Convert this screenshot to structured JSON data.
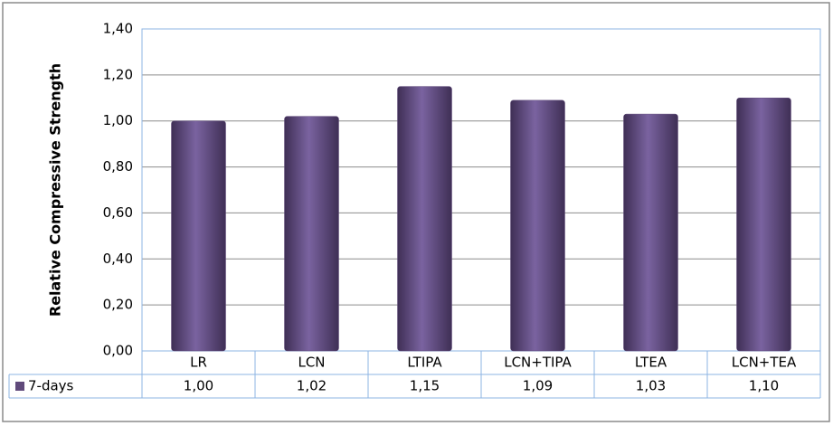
{
  "chart_data": {
    "type": "bar",
    "y_label": "Relative Compressive Strength",
    "categories": [
      "LR",
      "LCN",
      "LTIPA",
      "LCN+TIPA",
      "LTEA",
      "LCN+TEA"
    ],
    "series": [
      {
        "name": "7-days",
        "color": "#604a7b",
        "values": [
          1.0,
          1.02,
          1.15,
          1.09,
          1.03,
          1.1
        ],
        "value_labels": [
          "1,00",
          "1,02",
          "1,15",
          "1,09",
          "1,03",
          "1,10"
        ]
      }
    ],
    "ylim": [
      0,
      1.4
    ],
    "yticks": [
      {
        "value": 0,
        "label": "0,00"
      },
      {
        "value": 0.2,
        "label": "0,20"
      },
      {
        "value": 0.4,
        "label": "0,40"
      },
      {
        "value": 0.6,
        "label": "0,60"
      },
      {
        "value": 0.8,
        "label": "0,80"
      },
      {
        "value": 1.0,
        "label": "1,00"
      },
      {
        "value": 1.2,
        "label": "1,20"
      },
      {
        "value": 1.4,
        "label": "1,40"
      }
    ],
    "grid": true
  }
}
